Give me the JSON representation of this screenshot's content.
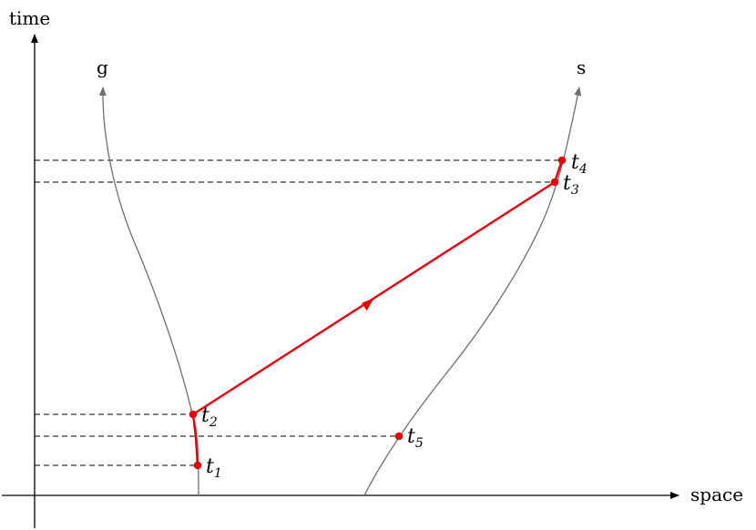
{
  "axes": {
    "x_label": "space",
    "y_label": "time"
  },
  "worldlines": {
    "g_label": "g",
    "s_label": "s"
  },
  "events": [
    {
      "id": "t1",
      "letter": "t",
      "sub": "1"
    },
    {
      "id": "t2",
      "letter": "t",
      "sub": "2"
    },
    {
      "id": "t3",
      "letter": "t",
      "sub": "3"
    },
    {
      "id": "t4",
      "letter": "t",
      "sub": "4"
    },
    {
      "id": "t5",
      "letter": "t",
      "sub": "5"
    }
  ],
  "colors": {
    "signal": "#e8000b",
    "worldline": "#6e6e6e",
    "axis": "#000000"
  }
}
